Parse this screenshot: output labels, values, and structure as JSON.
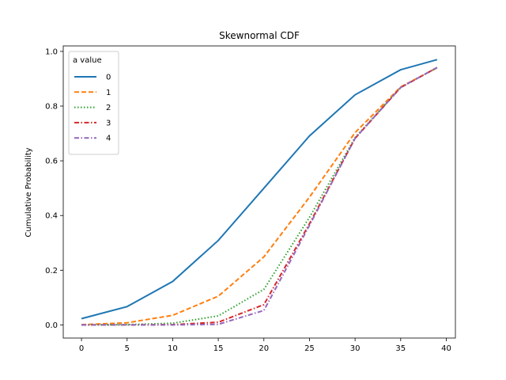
{
  "chart_data": {
    "type": "line",
    "title": "Skewnormal CDF",
    "xlabel": "",
    "ylabel": "Cumulative Probability",
    "xlim": [
      -2,
      41
    ],
    "ylim": [
      -0.048,
      1.02
    ],
    "xticks": [
      0,
      5,
      10,
      15,
      20,
      25,
      30,
      35,
      40
    ],
    "yticks": [
      0.0,
      0.2,
      0.4,
      0.6,
      0.8,
      1.0
    ],
    "grid": false,
    "legend": {
      "title": "a value",
      "placement": "top-left"
    },
    "x": [
      0,
      5,
      10,
      15,
      20,
      25,
      30,
      35,
      39
    ],
    "series": [
      {
        "name": "0",
        "color": "#1f77b4",
        "dash": "solid",
        "values": [
          0.023,
          0.067,
          0.159,
          0.309,
          0.5,
          0.691,
          0.841,
          0.933,
          0.97
        ]
      },
      {
        "name": "1",
        "color": "#ff7f0e",
        "dash": "dashed",
        "values": [
          0.001,
          0.008,
          0.035,
          0.105,
          0.249,
          0.467,
          0.703,
          0.87,
          0.94
        ]
      },
      {
        "name": "2",
        "color": "#2ca02c",
        "dash": "dotted",
        "values": [
          0.0,
          0.001,
          0.006,
          0.033,
          0.13,
          0.393,
          0.685,
          0.868,
          0.941
        ]
      },
      {
        "name": "3",
        "color": "#d62728",
        "dash": "dashdot",
        "values": [
          0.0,
          0.0,
          0.001,
          0.01,
          0.074,
          0.37,
          0.682,
          0.868,
          0.941
        ]
      },
      {
        "name": "4",
        "color": "#9467bd",
        "dash": "dashdot",
        "values": [
          0.0,
          0.0,
          0.0,
          0.002,
          0.053,
          0.364,
          0.682,
          0.868,
          0.941
        ]
      }
    ]
  }
}
